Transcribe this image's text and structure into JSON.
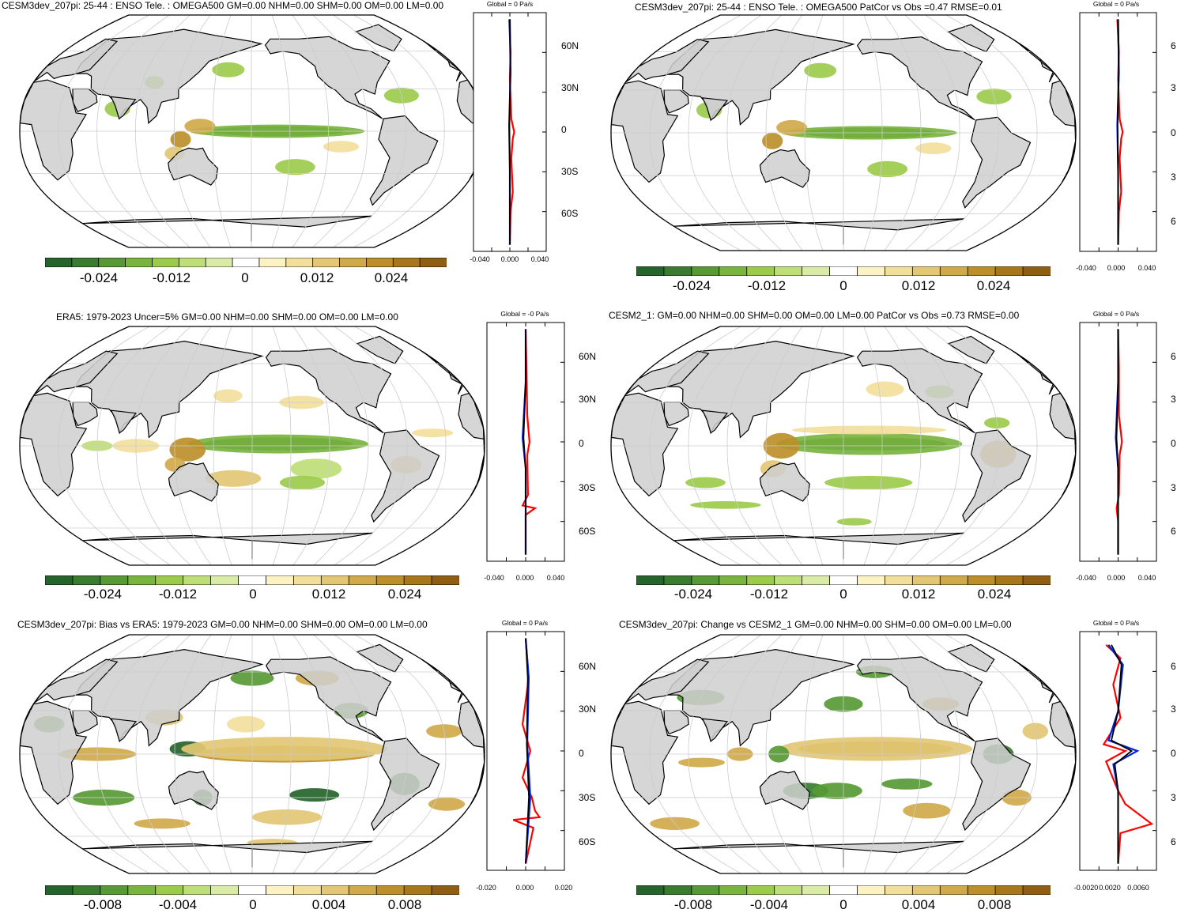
{
  "colors": {
    "land": "#cfcfcf",
    "ocean": "#ffffff",
    "scale": [
      "#25642b",
      "#3a7c2f",
      "#579a35",
      "#79b43e",
      "#9ccb4c",
      "#bede78",
      "#d9eba7",
      "#ffffff",
      "#fbf3c4",
      "#f2df9c",
      "#e3c774",
      "#d0a94a",
      "#bc8f2a",
      "#a8771b",
      "#8f5e12"
    ],
    "profile_lines": {
      "model": "#ff0000",
      "obs": "#0022dd",
      "mean": "#000000"
    },
    "grid": "#cccccc"
  },
  "panels": [
    {
      "id": "model",
      "title": "CESM3dev_207pi: 25-44 : ENSO Tele. : OMEGA500 GM=0.00 NHM=0.00 SHM=0.00 OM=0.00 LM=0.00",
      "colorbar_labels": [
        "-0.024",
        "-0.012",
        "0",
        "0.012",
        "0.024"
      ],
      "profile_title": "Global = 0 Pa/s",
      "lat_labels": [
        "60N",
        "30N",
        "0",
        "30S",
        "60S"
      ],
      "x_ticks": [
        "-0.040",
        "0.000",
        "0.040"
      ],
      "profile_scale": 0.05
    },
    {
      "id": "model-vs-obs",
      "title": "CESM3dev_207pi: 25-44 : ENSO Tele. : OMEGA500 PatCor vs Obs =0.47 RMSE=0.01",
      "colorbar_labels": [
        "-0.024",
        "-0.012",
        "0",
        "0.012",
        "0.024"
      ],
      "profile_title": "Global = 0 Pa/s",
      "lat_labels": [
        "6",
        "3",
        "0",
        "3",
        "6"
      ],
      "x_ticks": [
        "-0.040",
        "0.000",
        "0.040"
      ],
      "profile_scale": 0.05
    },
    {
      "id": "obs",
      "title": "ERA5: 1979-2023 Uncer=5% GM=0.00 NHM=0.00 SHM=0.00 OM=0.00 LM=0.00",
      "colorbar_labels": [
        "-0.024",
        "-0.012",
        "0",
        "0.012",
        "0.024"
      ],
      "profile_title": "Global = -0 Pa/s",
      "lat_labels": [
        "60N",
        "30N",
        "0",
        "30S",
        "60S"
      ],
      "x_ticks": [
        "-0.040",
        "0.000",
        "0.040"
      ],
      "profile_scale": 0.05
    },
    {
      "id": "reference-model",
      "title": "CESM2_1: GM=0.00 NHM=0.00 SHM=0.00 OM=0.00 LM=0.00 PatCor vs Obs =0.73 RMSE=0.00",
      "colorbar_labels": [
        "-0.024",
        "-0.012",
        "0",
        "0.012",
        "0.024"
      ],
      "profile_title": "Global = 0 Pa/s",
      "lat_labels": [
        "6",
        "3",
        "0",
        "3",
        "6"
      ],
      "x_ticks": [
        "-0.040",
        "0.000",
        "0.040"
      ],
      "profile_scale": 0.05
    },
    {
      "id": "bias",
      "title": "CESM3dev_207pi: Bias vs ERA5: 1979-2023 GM=0.00 NHM=0.00 SHM=0.00 OM=0.00 LM=0.00",
      "colorbar_labels": [
        "-0.008",
        "-0.004",
        "0",
        "0.004",
        "0.008"
      ],
      "profile_title": "Global = 0 Pa/s",
      "lat_labels": [
        "60N",
        "30N",
        "0",
        "30S",
        "60S"
      ],
      "x_ticks": [
        "-0.020",
        "0.000",
        "0.020"
      ],
      "profile_scale": 0.025
    },
    {
      "id": "change",
      "title": "CESM3dev_207pi: Change vs CESM2_1 GM=0.00 NHM=0.00 SHM=0.00 OM=0.00 LM=0.00",
      "colorbar_labels": [
        "-0.008",
        "-0.004",
        "0",
        "0.004",
        "0.008"
      ],
      "profile_title": "Global = 0 Pa/s",
      "lat_labels": [
        "6",
        "3",
        "0",
        "3",
        "6"
      ],
      "x_ticks": [
        "-0.0020",
        "0.0020",
        "0.0060"
      ],
      "profile_scale": 0.008
    }
  ]
}
